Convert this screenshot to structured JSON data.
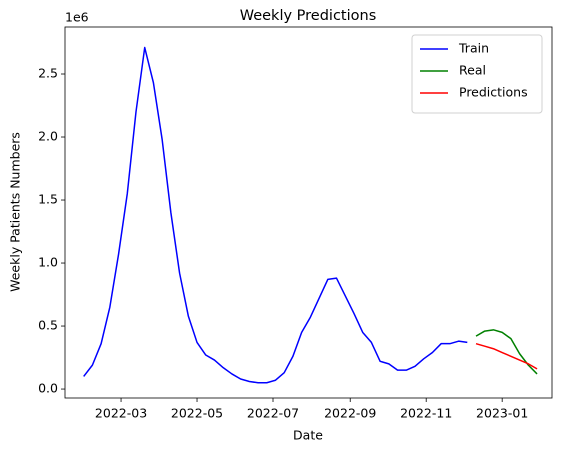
{
  "chart_data": {
    "type": "line",
    "title": "Weekly Predictions",
    "xlabel": "Date",
    "ylabel": "Weekly Patients Numbers",
    "y_offset_text": "1e6",
    "xlim": [
      "2022-01-15",
      "2023-02-10"
    ],
    "xticks": [
      {
        "value": "2022-03-01",
        "label": "2022-03"
      },
      {
        "value": "2022-05-01",
        "label": "2022-05"
      },
      {
        "value": "2022-07-01",
        "label": "2022-07"
      },
      {
        "value": "2022-09-01",
        "label": "2022-09"
      },
      {
        "value": "2022-11-01",
        "label": "2022-11"
      },
      {
        "value": "2023-01-01",
        "label": "2023-01"
      }
    ],
    "ylim": [
      -0.071,
      2.873
    ],
    "yticks": [
      {
        "value": 0,
        "label": "0.0"
      },
      {
        "value": 0.5,
        "label": "0.5"
      },
      {
        "value": 1,
        "label": "1.0"
      },
      {
        "value": 1.5,
        "label": "1.5"
      },
      {
        "value": 2,
        "label": "2.0"
      },
      {
        "value": 2.5,
        "label": "2.5"
      }
    ],
    "legend": "upper right",
    "series": [
      {
        "name": "Train",
        "color": "#0000ff",
        "x": [
          "2022-01-30",
          "2022-02-06",
          "2022-02-13",
          "2022-02-20",
          "2022-02-27",
          "2022-03-06",
          "2022-03-13",
          "2022-03-20",
          "2022-03-27",
          "2022-04-03",
          "2022-04-10",
          "2022-04-17",
          "2022-04-24",
          "2022-05-01",
          "2022-05-08",
          "2022-05-15",
          "2022-05-22",
          "2022-05-29",
          "2022-06-05",
          "2022-06-12",
          "2022-06-19",
          "2022-06-26",
          "2022-07-03",
          "2022-07-10",
          "2022-07-17",
          "2022-07-24",
          "2022-07-31",
          "2022-08-07",
          "2022-08-14",
          "2022-08-21",
          "2022-08-28",
          "2022-09-04",
          "2022-09-11",
          "2022-09-18",
          "2022-09-25",
          "2022-10-02",
          "2022-10-09",
          "2022-10-16",
          "2022-10-23",
          "2022-10-30",
          "2022-11-06",
          "2022-11-13",
          "2022-11-20",
          "2022-11-27",
          "2022-12-04"
        ],
        "values": [
          0.1,
          0.19,
          0.36,
          0.65,
          1.07,
          1.55,
          2.2,
          2.71,
          2.43,
          1.98,
          1.4,
          0.92,
          0.58,
          0.37,
          0.27,
          0.23,
          0.17,
          0.12,
          0.08,
          0.06,
          0.05,
          0.05,
          0.07,
          0.13,
          0.26,
          0.45,
          0.57,
          0.72,
          0.87,
          0.88,
          0.74,
          0.6,
          0.45,
          0.37,
          0.22,
          0.2,
          0.15,
          0.15,
          0.18,
          0.24,
          0.29,
          0.36,
          0.36,
          0.38,
          0.37
        ]
      },
      {
        "name": "Real",
        "color": "#008000",
        "x": [
          "2022-12-11",
          "2022-12-18",
          "2022-12-25",
          "2023-01-01",
          "2023-01-08",
          "2023-01-15",
          "2023-01-22",
          "2023-01-29"
        ],
        "values": [
          0.42,
          0.46,
          0.47,
          0.45,
          0.4,
          0.28,
          0.19,
          0.12
        ]
      },
      {
        "name": "Predictions",
        "color": "#ff0000",
        "x": [
          "2022-12-11",
          "2022-12-18",
          "2022-12-25",
          "2023-01-01",
          "2023-01-08",
          "2023-01-15",
          "2023-01-22",
          "2023-01-29"
        ],
        "values": [
          0.36,
          0.34,
          0.32,
          0.29,
          0.26,
          0.23,
          0.2,
          0.16
        ]
      }
    ]
  }
}
